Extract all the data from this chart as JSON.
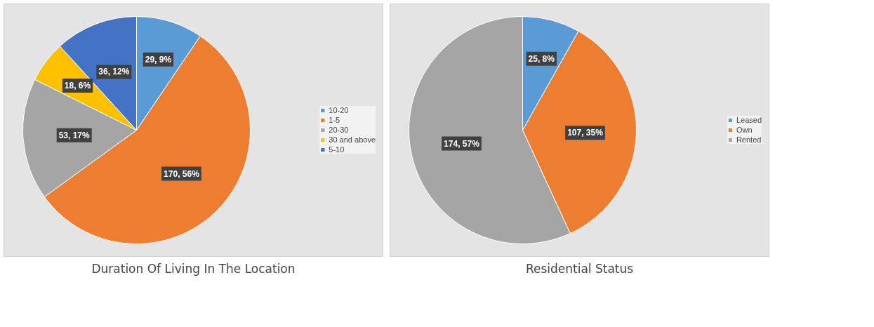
{
  "chart_data": [
    {
      "type": "pie",
      "title": "Duration Of Living In The Location",
      "categories": [
        "10-20",
        "1-5",
        "20-30",
        "30 and above",
        "5-10"
      ],
      "values": [
        29,
        170,
        53,
        18,
        36
      ],
      "colors": [
        "#5b9bd5",
        "#ed7d31",
        "#a5a5a5",
        "#ffc000",
        "#4472c4"
      ],
      "value_labels": [
        "29, 9%",
        "170, 56%",
        "53, 17%",
        "18, 6%",
        "36, 12%"
      ],
      "legend": "right"
    },
    {
      "type": "pie",
      "title": "Residential Status",
      "categories": [
        "Leased",
        "Own",
        "Rented"
      ],
      "values": [
        25,
        107,
        174
      ],
      "colors": [
        "#5b9bd5",
        "#ed7d31",
        "#a5a5a5"
      ],
      "value_labels": [
        "25, 8%",
        "107, 35%",
        "174, 57%"
      ],
      "legend": "right"
    }
  ]
}
